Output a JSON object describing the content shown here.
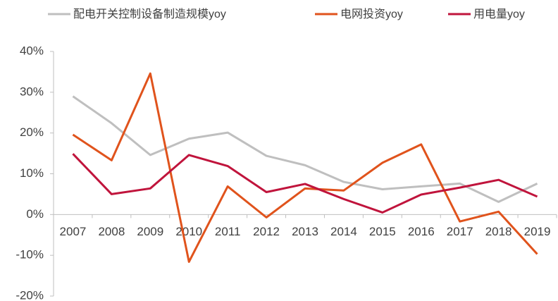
{
  "chart_data": {
    "type": "line",
    "categories": [
      "2007",
      "2008",
      "2009",
      "2010",
      "2011",
      "2012",
      "2013",
      "2014",
      "2015",
      "2016",
      "2017",
      "2018",
      "2019"
    ],
    "series": [
      {
        "name": "配电开关控制设备制造规模yoy",
        "color": "#bfbfbf",
        "values": [
          29,
          22.4,
          14.6,
          18.6,
          20.1,
          14.4,
          12.1,
          8.0,
          6.2,
          6.9,
          7.6,
          3.1,
          7.6
        ]
      },
      {
        "name": "电网投资yoy",
        "color": "#e0531c",
        "values": [
          19.6,
          13.3,
          34.6,
          -11.6,
          6.9,
          -0.7,
          6.4,
          5.9,
          12.7,
          17.2,
          -1.7,
          0.7,
          -9.7
        ]
      },
      {
        "name": "用电量yoy",
        "color": "#c0143c",
        "values": [
          14.9,
          5.0,
          6.4,
          14.6,
          11.9,
          5.5,
          7.5,
          3.8,
          0.5,
          4.9,
          6.6,
          8.5,
          4.4
        ]
      }
    ],
    "ylim": [
      -20,
      40
    ],
    "yticks": [
      {
        "value": -20,
        "label": "-20%"
      },
      {
        "value": -10,
        "label": "-10%"
      },
      {
        "value": 0,
        "label": "0%"
      },
      {
        "value": 10,
        "label": "10%"
      },
      {
        "value": 20,
        "label": "20%"
      },
      {
        "value": 30,
        "label": "30%"
      },
      {
        "value": 40,
        "label": "40%"
      }
    ],
    "legend": "top"
  }
}
